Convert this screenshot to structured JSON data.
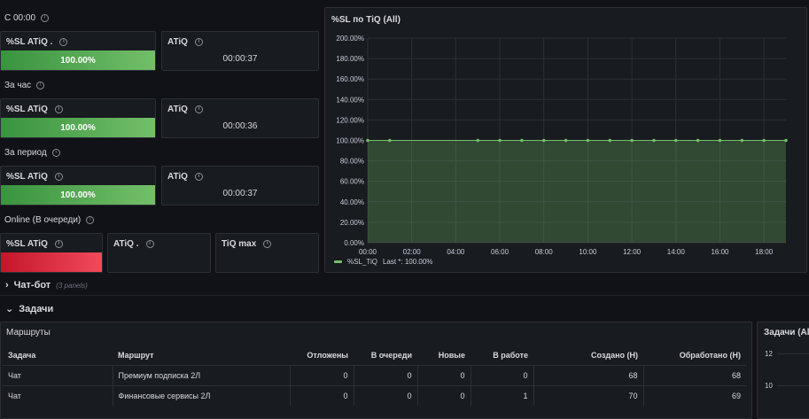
{
  "rows": {
    "c0000": "С 00:00",
    "hour": "За час",
    "period": "За период",
    "online": "Online (В очереди)"
  },
  "stats": {
    "r1": {
      "sl_title": "%SL ATiQ .",
      "sl_value": "100.00%",
      "atiq_title": "ATiQ",
      "atiq_value": "00:00:37"
    },
    "r2": {
      "sl_title": "%SL ATiQ",
      "sl_value": "100.00%",
      "atiq_title": "ATiQ",
      "atiq_value": "00:00:36"
    },
    "r3": {
      "sl_title": "%SL ATiQ",
      "sl_value": "100.00%",
      "atiq_title": "ATiQ",
      "atiq_value": "00:00:37"
    },
    "r4": {
      "sl_title": "%SL ATiQ",
      "atiq_title": "ATiQ .",
      "tiq_title": "TiQ max"
    }
  },
  "sections": {
    "chatbot": "Чат-бот",
    "chatbot_count": "(3 panels)",
    "tasks": "Задачи"
  },
  "routes_panel": {
    "title": "Маршруты",
    "columns": [
      "Задача",
      "Маршрут",
      "Отложены",
      "В очереди",
      "Новые",
      "В работе",
      "Создано (Н)",
      "Обработано (Н)"
    ],
    "rows": [
      [
        "Чат",
        "Премиум подписка 2Л",
        "0",
        "0",
        "0",
        "0",
        "68",
        "68"
      ],
      [
        "Чат",
        "Финансовые сервисы 2Л",
        "0",
        "0",
        "0",
        "1",
        "70",
        "69"
      ]
    ]
  },
  "right_panel": {
    "title": "Задачи (All",
    "y_ticks": [
      "12",
      "10"
    ]
  },
  "chart_panel": {
    "title": "%SL по TiQ (All)",
    "legend_name": "%SL_TiQ",
    "legend_last": "Last *: 100.00%"
  },
  "colors": {
    "series": "#73bf69",
    "accent_red": "#f2495c"
  },
  "chart_data": {
    "type": "area",
    "title": "%SL по TiQ (All)",
    "x_ticks": [
      "00:00",
      "02:00",
      "04:00",
      "06:00",
      "08:00",
      "10:00",
      "12:00",
      "14:00",
      "16:00",
      "18:00"
    ],
    "y_ticks": [
      "0.00%",
      "20.00%",
      "40.00%",
      "60.00%",
      "80.00%",
      "100.00%",
      "120.00%",
      "140.00%",
      "160.00%",
      "180.00%",
      "200.00%"
    ],
    "ylim": [
      0,
      200
    ],
    "xlim_hours": [
      0,
      19
    ],
    "series": [
      {
        "name": "%SL_TiQ",
        "x_hours": [
          0,
          1,
          5,
          6,
          7,
          8,
          9,
          10,
          11,
          12,
          13,
          14,
          15,
          16,
          17,
          18,
          19
        ],
        "values": [
          100,
          100,
          100,
          100,
          100,
          100,
          100,
          100,
          100,
          100,
          100,
          100,
          100,
          100,
          100,
          100,
          100
        ]
      }
    ],
    "grid": true,
    "legend": "bottom-left"
  }
}
